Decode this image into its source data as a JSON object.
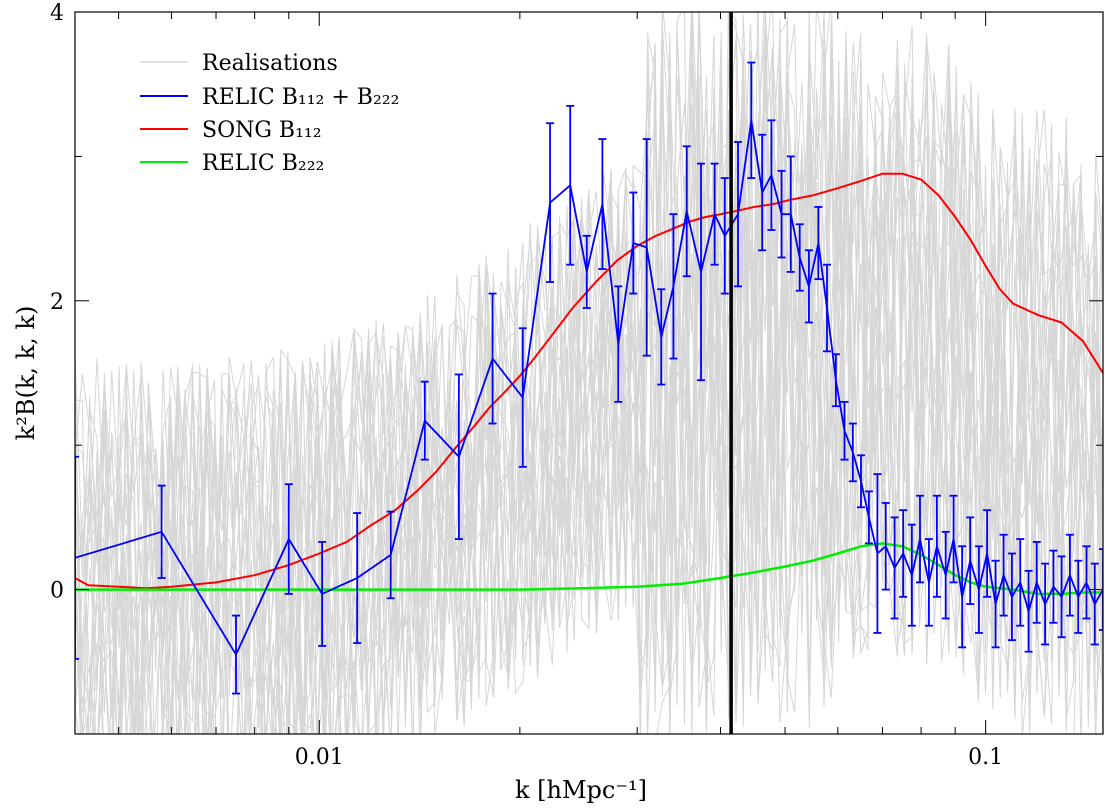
{
  "chart_data": {
    "type": "line",
    "xscale": "log",
    "xlabel": "k [hMpc⁻¹]",
    "ylabel": "k²B(k, k, k)",
    "xlim": [
      0.0043,
      0.15
    ],
    "ylim": [
      -1,
      4
    ],
    "xticks": [
      {
        "value": 0.01,
        "label": "0.01"
      },
      {
        "value": 0.1,
        "label": "0.1"
      }
    ],
    "yticks": [
      {
        "value": 0,
        "label": "0"
      },
      {
        "value": 2,
        "label": "2"
      },
      {
        "value": 4,
        "label": "4"
      }
    ],
    "grid": false,
    "vline": {
      "x": 0.0415,
      "color": "#000000"
    },
    "legend": {
      "position": "top-left",
      "entries": [
        {
          "label": "Realisations",
          "color": "#d6d6d6"
        },
        {
          "label": "RELIC B₁₁₂ + B₂₂₂",
          "color": "#0000ff"
        },
        {
          "label": "SONG B₁₁₂",
          "color": "#ff0000"
        },
        {
          "label": "RELIC B₂₂₂",
          "color": "#00ee00"
        }
      ]
    },
    "series": [
      {
        "name": "SONG B₁₁₂",
        "color": "#ff0000",
        "points": [
          [
            0.0043,
            0.08
          ],
          [
            0.0045,
            0.03
          ],
          [
            0.005,
            0.02
          ],
          [
            0.0055,
            0.01
          ],
          [
            0.006,
            0.02
          ],
          [
            0.007,
            0.05
          ],
          [
            0.008,
            0.1
          ],
          [
            0.009,
            0.17
          ],
          [
            0.01,
            0.25
          ],
          [
            0.011,
            0.33
          ],
          [
            0.012,
            0.45
          ],
          [
            0.013,
            0.55
          ],
          [
            0.014,
            0.68
          ],
          [
            0.015,
            0.82
          ],
          [
            0.016,
            0.98
          ],
          [
            0.017,
            1.12
          ],
          [
            0.018,
            1.26
          ],
          [
            0.019,
            1.37
          ],
          [
            0.02,
            1.48
          ],
          [
            0.021,
            1.6
          ],
          [
            0.022,
            1.72
          ],
          [
            0.024,
            1.95
          ],
          [
            0.026,
            2.13
          ],
          [
            0.028,
            2.28
          ],
          [
            0.03,
            2.38
          ],
          [
            0.032,
            2.45
          ],
          [
            0.034,
            2.5
          ],
          [
            0.036,
            2.55
          ],
          [
            0.038,
            2.58
          ],
          [
            0.04,
            2.6
          ],
          [
            0.042,
            2.62
          ],
          [
            0.045,
            2.65
          ],
          [
            0.048,
            2.67
          ],
          [
            0.051,
            2.7
          ],
          [
            0.055,
            2.73
          ],
          [
            0.06,
            2.78
          ],
          [
            0.065,
            2.83
          ],
          [
            0.07,
            2.88
          ],
          [
            0.075,
            2.88
          ],
          [
            0.08,
            2.84
          ],
          [
            0.085,
            2.73
          ],
          [
            0.09,
            2.58
          ],
          [
            0.095,
            2.42
          ],
          [
            0.1,
            2.24
          ],
          [
            0.105,
            2.08
          ],
          [
            0.11,
            1.98
          ],
          [
            0.12,
            1.9
          ],
          [
            0.13,
            1.85
          ],
          [
            0.14,
            1.72
          ],
          [
            0.15,
            1.5
          ]
        ]
      },
      {
        "name": "RELIC B₂₂₂",
        "color": "#00ee00",
        "points": [
          [
            0.0043,
            0.0
          ],
          [
            0.01,
            0.0
          ],
          [
            0.015,
            0.0
          ],
          [
            0.02,
            0.0
          ],
          [
            0.025,
            0.01
          ],
          [
            0.03,
            0.02
          ],
          [
            0.035,
            0.04
          ],
          [
            0.04,
            0.08
          ],
          [
            0.045,
            0.12
          ],
          [
            0.05,
            0.16
          ],
          [
            0.055,
            0.2
          ],
          [
            0.06,
            0.25
          ],
          [
            0.065,
            0.3
          ],
          [
            0.07,
            0.32
          ],
          [
            0.075,
            0.3
          ],
          [
            0.08,
            0.24
          ],
          [
            0.085,
            0.17
          ],
          [
            0.09,
            0.1
          ],
          [
            0.095,
            0.05
          ],
          [
            0.1,
            0.02
          ],
          [
            0.11,
            0.0
          ],
          [
            0.12,
            -0.03
          ],
          [
            0.13,
            -0.03
          ],
          [
            0.14,
            -0.02
          ],
          [
            0.15,
            -0.02
          ]
        ]
      },
      {
        "name": "RELIC B₁₁₂ + B₂₂₂",
        "color": "#0000ff",
        "points": [
          [
            0.0043,
            0.22,
            0.7
          ],
          [
            0.0058,
            0.4,
            0.32
          ],
          [
            0.0075,
            -0.45,
            0.27
          ],
          [
            0.009,
            0.35,
            0.38
          ],
          [
            0.0101,
            -0.03,
            0.36
          ],
          [
            0.0114,
            0.08,
            0.45
          ],
          [
            0.0128,
            0.24,
            0.3
          ],
          [
            0.0144,
            1.17,
            0.27
          ],
          [
            0.0162,
            0.92,
            0.57
          ],
          [
            0.0182,
            1.6,
            0.45
          ],
          [
            0.0202,
            1.33,
            0.48
          ],
          [
            0.0222,
            2.68,
            0.55
          ],
          [
            0.0238,
            2.8,
            0.55
          ],
          [
            0.0252,
            2.2,
            0.25
          ],
          [
            0.0266,
            2.67,
            0.45
          ],
          [
            0.0281,
            1.7,
            0.4
          ],
          [
            0.0296,
            2.4,
            0.35
          ],
          [
            0.031,
            2.37,
            0.75
          ],
          [
            0.0326,
            1.75,
            0.33
          ],
          [
            0.034,
            2.1,
            0.5
          ],
          [
            0.0356,
            2.62,
            0.45
          ],
          [
            0.0374,
            2.2,
            0.75
          ],
          [
            0.0392,
            2.6,
            0.35
          ],
          [
            0.0406,
            2.45,
            0.4
          ],
          [
            0.0425,
            2.6,
            0.5
          ],
          [
            0.0445,
            3.25,
            0.4
          ],
          [
            0.0462,
            2.75,
            0.4
          ],
          [
            0.0477,
            2.87,
            0.38
          ],
          [
            0.0494,
            2.6,
            0.3
          ],
          [
            0.051,
            2.6,
            0.4
          ],
          [
            0.0526,
            2.3,
            0.23
          ],
          [
            0.0543,
            2.1,
            0.25
          ],
          [
            0.0561,
            2.4,
            0.25
          ],
          [
            0.0578,
            1.95,
            0.3
          ],
          [
            0.0596,
            1.45,
            0.18
          ],
          [
            0.0614,
            1.1,
            0.2
          ],
          [
            0.0632,
            0.95,
            0.2
          ],
          [
            0.065,
            0.75,
            0.18
          ],
          [
            0.0668,
            0.5,
            0.18
          ],
          [
            0.0688,
            0.25,
            0.55
          ],
          [
            0.0708,
            0.3,
            0.3
          ],
          [
            0.073,
            0.15,
            0.35
          ],
          [
            0.0752,
            0.25,
            0.3
          ],
          [
            0.0775,
            0.1,
            0.35
          ],
          [
            0.0797,
            0.35,
            0.3
          ],
          [
            0.0822,
            0.05,
            0.3
          ],
          [
            0.0845,
            0.3,
            0.35
          ],
          [
            0.0871,
            0.1,
            0.3
          ],
          [
            0.0895,
            0.35,
            0.3
          ],
          [
            0.0922,
            -0.05,
            0.35
          ],
          [
            0.0948,
            0.2,
            0.3
          ],
          [
            0.0977,
            0.0,
            0.3
          ],
          [
            0.1005,
            0.25,
            0.3
          ],
          [
            0.1035,
            -0.1,
            0.3
          ],
          [
            0.1064,
            0.1,
            0.28
          ],
          [
            0.1095,
            -0.05,
            0.3
          ],
          [
            0.1127,
            0.05,
            0.3
          ],
          [
            0.116,
            -0.15,
            0.28
          ],
          [
            0.1193,
            0.05,
            0.28
          ],
          [
            0.1228,
            -0.1,
            0.28
          ],
          [
            0.1264,
            0.02,
            0.25
          ],
          [
            0.13,
            -0.05,
            0.28
          ],
          [
            0.1338,
            0.1,
            0.28
          ],
          [
            0.1377,
            -0.05,
            0.25
          ],
          [
            0.1417,
            0.05,
            0.25
          ],
          [
            0.1458,
            -0.1,
            0.28
          ],
          [
            0.15,
            0.0,
            0.28
          ]
        ]
      }
    ]
  }
}
